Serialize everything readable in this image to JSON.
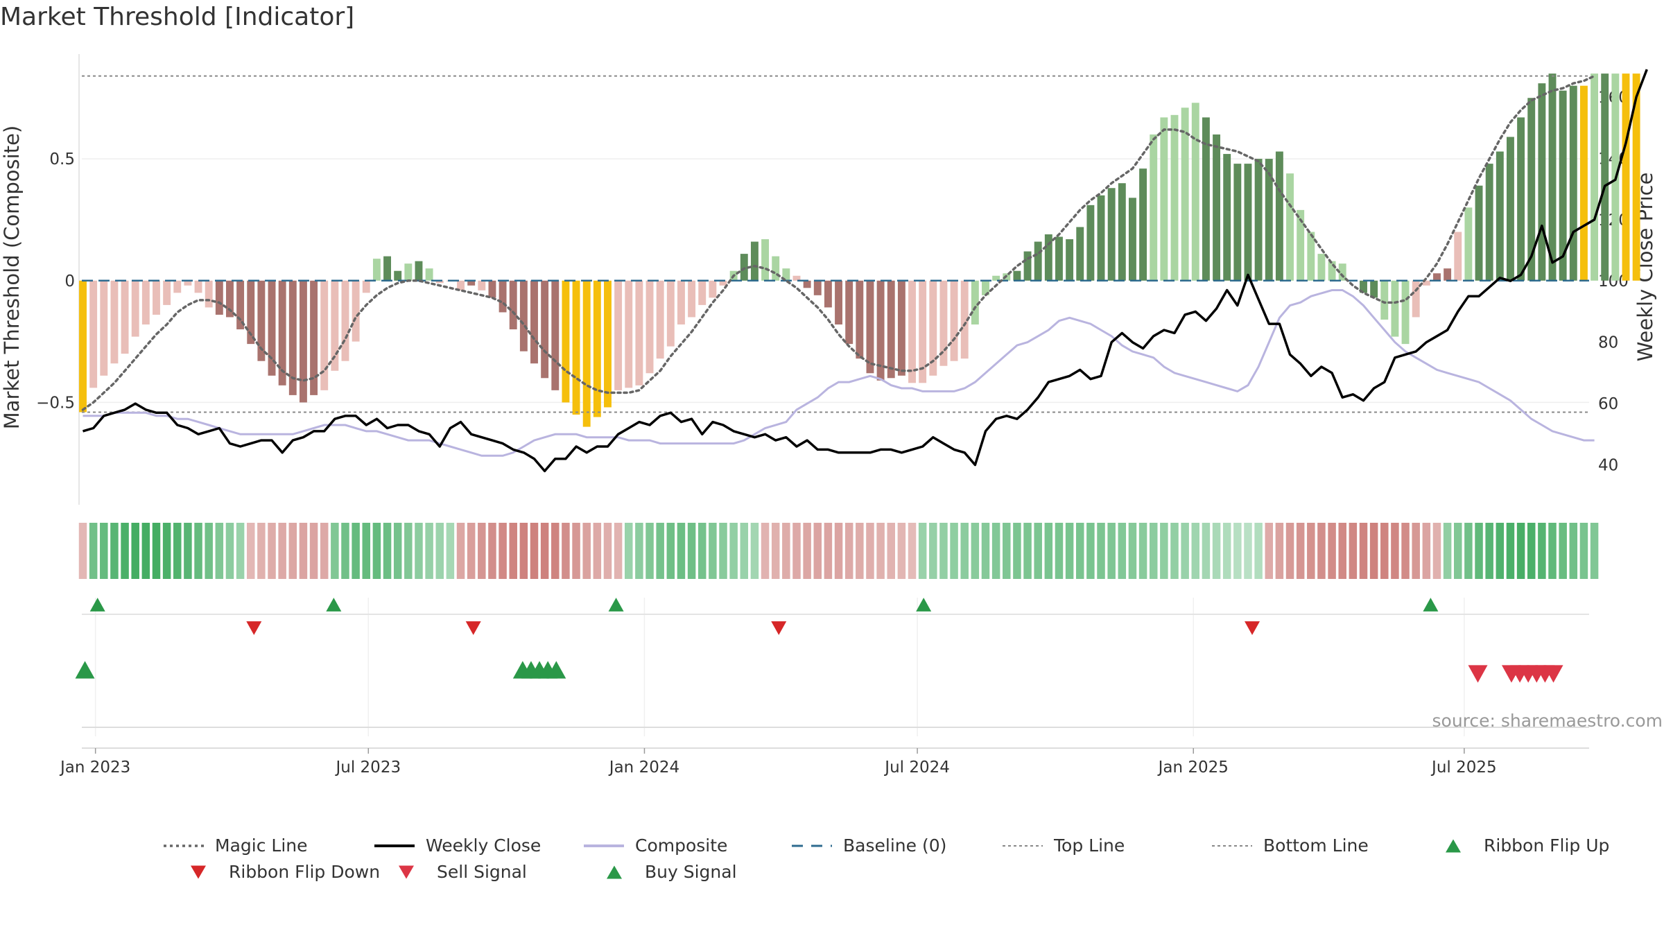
{
  "title": "Market Threshold [Indicator]",
  "source": "source: sharemaestro.com",
  "colors": {
    "yellow": "#f5bf0c",
    "dark_green": "#5e8c5a",
    "light_green": "#aad5a2",
    "dark_red": "#a9736e",
    "light_red": "#e9beb8",
    "magic_line": "#666666",
    "weekly_close": "#000000",
    "composite": "#b9b4df",
    "baseline": "#2e6b8f",
    "grid": "#efefef",
    "buy": "#2a9848",
    "sell": "#dc3545",
    "flip_down": "#d62728"
  },
  "chart_data": {
    "type": "bar",
    "title": "Market Threshold [Indicator]",
    "ylabel": "Market Threshold (Composite)",
    "y2label": "Weekly Close Price",
    "ylim": [
      -0.92,
      0.93
    ],
    "y2lim": [
      27,
      174
    ],
    "yticks": [
      {
        "v": 0.5,
        "label": "0.5"
      },
      {
        "v": 0,
        "label": "0"
      },
      {
        "v": -0.5,
        "label": "−0.5"
      }
    ],
    "y2ticks": [
      40,
      60,
      80,
      100,
      120,
      140,
      160
    ],
    "x_range": [
      -1.3,
      142.3
    ],
    "x_ticks": [
      {
        "label": "Jan 2023",
        "x": 0
      },
      {
        "label": "Jul 2023",
        "x": 26
      },
      {
        "label": "Jan 2024",
        "x": 52.3
      },
      {
        "label": "Jul 2024",
        "x": 78.3
      },
      {
        "label": "Jan 2025",
        "x": 104.6
      },
      {
        "label": "Jul 2025",
        "x": 130.4
      }
    ],
    "top_line": 0.84,
    "bottom_line": -0.54,
    "start_x": -1.2,
    "composite_bars": [
      -0.54,
      -0.44,
      -0.39,
      -0.34,
      -0.3,
      -0.23,
      -0.18,
      -0.14,
      -0.1,
      -0.05,
      -0.02,
      -0.05,
      -0.11,
      -0.14,
      -0.15,
      -0.2,
      -0.26,
      -0.33,
      -0.39,
      -0.43,
      -0.47,
      -0.5,
      -0.47,
      -0.45,
      -0.37,
      -0.33,
      -0.25,
      -0.05,
      0.09,
      0.1,
      0.04,
      0.07,
      0.08,
      0.05,
      -0.01,
      0.0,
      -0.04,
      -0.02,
      -0.04,
      -0.07,
      -0.13,
      -0.2,
      -0.29,
      -0.34,
      -0.4,
      -0.45,
      -0.5,
      -0.55,
      -0.6,
      -0.56,
      -0.52,
      -0.45,
      -0.44,
      -0.43,
      -0.38,
      -0.32,
      -0.27,
      -0.18,
      -0.15,
      -0.1,
      -0.07,
      -0.02,
      0.04,
      0.11,
      0.16,
      0.17,
      0.1,
      0.05,
      0.02,
      -0.03,
      -0.06,
      -0.11,
      -0.18,
      -0.26,
      -0.32,
      -0.38,
      -0.41,
      -0.4,
      -0.39,
      -0.42,
      -0.42,
      -0.39,
      -0.35,
      -0.33,
      -0.32,
      -0.18,
      -0.06,
      0.02,
      0.03,
      0.04,
      0.12,
      0.16,
      0.19,
      0.18,
      0.17,
      0.22,
      0.31,
      0.35,
      0.38,
      0.4,
      0.34,
      0.46,
      0.6,
      0.67,
      0.68,
      0.71,
      0.73,
      0.67,
      0.6,
      0.52,
      0.48,
      0.48,
      0.5,
      0.5,
      0.53,
      0.44,
      0.29,
      0.2,
      0.11,
      0.08,
      0.07,
      0.0,
      -0.05,
      -0.07,
      -0.16,
      -0.23,
      -0.26,
      -0.15,
      -0.02,
      0.03,
      0.05,
      0.2,
      0.3,
      0.39,
      0.48,
      0.53,
      0.59,
      0.67,
      0.75,
      0.81,
      0.85,
      0.78,
      0.8,
      0.8,
      0.85,
      0.85,
      0.85,
      0.85,
      0.85
    ],
    "bar_classes": "YrrrrrrrrrrrrRRRRRRRRRRrrrrrgGGgGgrrrRrRRRRRRRYYYYYrrrrrrrrrrrgGGgggrRRRRRRRRRRrrrrrrggggGGGGGGGGGGGGGgggggGGGGGGGGgggggggGGgggrrRRrgGGGGGGGGGGYgGgYYYYY",
    "magic_line": [
      -0.53,
      -0.5,
      -0.46,
      -0.42,
      -0.37,
      -0.32,
      -0.27,
      -0.22,
      -0.18,
      -0.13,
      -0.1,
      -0.08,
      -0.08,
      -0.09,
      -0.12,
      -0.16,
      -0.22,
      -0.28,
      -0.32,
      -0.37,
      -0.4,
      -0.41,
      -0.4,
      -0.37,
      -0.31,
      -0.24,
      -0.15,
      -0.1,
      -0.06,
      -0.03,
      -0.01,
      0.0,
      0.0,
      -0.01,
      -0.02,
      -0.03,
      -0.04,
      -0.05,
      -0.06,
      -0.07,
      -0.09,
      -0.13,
      -0.18,
      -0.24,
      -0.29,
      -0.33,
      -0.37,
      -0.4,
      -0.43,
      -0.45,
      -0.46,
      -0.46,
      -0.46,
      -0.45,
      -0.41,
      -0.37,
      -0.31,
      -0.26,
      -0.21,
      -0.15,
      -0.09,
      -0.04,
      0.02,
      0.05,
      0.06,
      0.05,
      0.03,
      0.0,
      -0.03,
      -0.07,
      -0.11,
      -0.16,
      -0.22,
      -0.27,
      -0.31,
      -0.34,
      -0.35,
      -0.36,
      -0.37,
      -0.37,
      -0.36,
      -0.33,
      -0.29,
      -0.24,
      -0.18,
      -0.11,
      -0.06,
      -0.02,
      0.02,
      0.06,
      0.09,
      0.11,
      0.15,
      0.19,
      0.24,
      0.29,
      0.33,
      0.36,
      0.4,
      0.43,
      0.46,
      0.52,
      0.58,
      0.62,
      0.62,
      0.61,
      0.58,
      0.56,
      0.55,
      0.54,
      0.53,
      0.51,
      0.49,
      0.44,
      0.37,
      0.31,
      0.25,
      0.19,
      0.13,
      0.07,
      0.02,
      -0.02,
      -0.05,
      -0.07,
      -0.09,
      -0.09,
      -0.08,
      -0.04,
      0.01,
      0.07,
      0.15,
      0.24,
      0.33,
      0.42,
      0.5,
      0.58,
      0.65,
      0.7,
      0.74,
      0.76,
      0.78,
      0.79,
      0.81,
      0.82,
      0.84
    ],
    "weekly_close": [
      51,
      52,
      56,
      57,
      58,
      60,
      58,
      57,
      57,
      53,
      52,
      50,
      51,
      52,
      47,
      46,
      47,
      48,
      48,
      44,
      48,
      49,
      51,
      51,
      55,
      56,
      56,
      53,
      55,
      52,
      53,
      53,
      51,
      50,
      46,
      52,
      54,
      50,
      49,
      48,
      47,
      45,
      44,
      42,
      38,
      42,
      42,
      46,
      44,
      46,
      46,
      50,
      52,
      54,
      53,
      56,
      57,
      54,
      55,
      50,
      54,
      53,
      51,
      50,
      49,
      50,
      48,
      49,
      46,
      48,
      45,
      45,
      44,
      44,
      44,
      44,
      45,
      45,
      44,
      45,
      46,
      49,
      47,
      45,
      44,
      40,
      51,
      55,
      56,
      55,
      58,
      62,
      67,
      68,
      69,
      71,
      68,
      69,
      80,
      83,
      80,
      78,
      82,
      84,
      83,
      89,
      90,
      87,
      91,
      97,
      92,
      102,
      94,
      86,
      86,
      76,
      73,
      69,
      72,
      70,
      62,
      63,
      61,
      65,
      67,
      75,
      76,
      77,
      80,
      82,
      84,
      90,
      95,
      95,
      98,
      101,
      100,
      102,
      108,
      118,
      106,
      108,
      116,
      118,
      120,
      131,
      133,
      145,
      160,
      169
    ],
    "composite_line": [
      56,
      56,
      56,
      57,
      57,
      57,
      57,
      56,
      56,
      55,
      55,
      54,
      53,
      52,
      51,
      50,
      50,
      50,
      50,
      50,
      50,
      51,
      52,
      53,
      53,
      53,
      52,
      51,
      51,
      50,
      49,
      48,
      48,
      48,
      47,
      46,
      45,
      44,
      43,
      43,
      43,
      44,
      46,
      48,
      49,
      50,
      50,
      50,
      49,
      49,
      49,
      49,
      48,
      48,
      48,
      47,
      47,
      47,
      47,
      47,
      47,
      47,
      47,
      48,
      50,
      52,
      53,
      54,
      58,
      60,
      62,
      65,
      67,
      67,
      68,
      69,
      68,
      66,
      65,
      65,
      64,
      64,
      64,
      64,
      65,
      67,
      70,
      73,
      76,
      79,
      80,
      82,
      84,
      87,
      88,
      87,
      86,
      84,
      82,
      79,
      77,
      76,
      75,
      72,
      70,
      69,
      68,
      67,
      66,
      65,
      64,
      66,
      72,
      80,
      88,
      92,
      93,
      95,
      96,
      97,
      97,
      95,
      92,
      88,
      84,
      80,
      77,
      75,
      73,
      71,
      70,
      69,
      68,
      67,
      65,
      63,
      61,
      58,
      55,
      53,
      51,
      50,
      49,
      48,
      48
    ],
    "ribbon": [
      -0.25,
      0.55,
      0.62,
      0.7,
      0.78,
      0.82,
      0.82,
      0.82,
      0.78,
      0.74,
      0.7,
      0.62,
      0.55,
      0.45,
      0.38,
      0.3,
      -0.25,
      -0.3,
      -0.34,
      -0.36,
      -0.38,
      -0.4,
      -0.4,
      -0.36,
      0.45,
      0.55,
      0.62,
      0.62,
      0.62,
      0.58,
      0.52,
      0.45,
      0.38,
      0.32,
      0.28,
      0.22,
      -0.38,
      -0.45,
      -0.52,
      -0.58,
      -0.62,
      -0.66,
      -0.68,
      -0.68,
      -0.68,
      -0.66,
      -0.58,
      -0.5,
      -0.42,
      -0.36,
      -0.32,
      -0.28,
      0.3,
      0.38,
      0.45,
      0.52,
      0.56,
      0.58,
      0.56,
      0.52,
      0.45,
      0.4,
      0.34,
      0.3,
      0.24,
      -0.28,
      -0.3,
      -0.34,
      -0.36,
      -0.38,
      -0.4,
      -0.4,
      -0.4,
      -0.36,
      -0.34,
      -0.32,
      -0.3,
      -0.28,
      -0.26,
      -0.22,
      0.3,
      0.32,
      0.34,
      0.36,
      0.38,
      0.4,
      0.42,
      0.44,
      0.46,
      0.48,
      0.48,
      0.48,
      0.5,
      0.5,
      0.5,
      0.5,
      0.5,
      0.48,
      0.46,
      0.44,
      0.42,
      0.4,
      0.38,
      0.36,
      0.34,
      0.3,
      0.26,
      0.24,
      0.2,
      0.16,
      0.12,
      0.1,
      0.15,
      -0.35,
      -0.42,
      -0.48,
      -0.52,
      -0.55,
      -0.58,
      -0.6,
      -0.62,
      -0.64,
      -0.66,
      -0.68,
      -0.66,
      -0.64,
      -0.6,
      -0.5,
      -0.4,
      -0.3,
      0.35,
      0.45,
      0.55,
      0.65,
      0.7,
      0.75,
      0.78,
      0.8,
      0.78,
      0.72,
      0.65,
      0.6,
      0.55,
      0.5,
      0.45
    ],
    "ribbon_flip_up": [
      0.2,
      22.7,
      49.6,
      78.9,
      127.2
    ],
    "ribbon_flip_down": [
      15.1,
      36.0,
      65.1,
      110.2
    ],
    "buy_signal": [
      -1.0,
      40.7,
      41.5,
      42.3,
      43.1,
      43.9
    ],
    "sell_signal": [
      131.7,
      134.9,
      135.7,
      136.5,
      137.3,
      138.1,
      138.9
    ],
    "legend": [
      {
        "label": "Magic Line",
        "kind": "dotted",
        "color": "#666666"
      },
      {
        "label": "Weekly Close",
        "kind": "solid",
        "color": "#000000"
      },
      {
        "label": "Composite",
        "kind": "solid",
        "color": "#b9b4df"
      },
      {
        "label": "Baseline (0)",
        "kind": "dashed",
        "color": "#2e6b8f"
      },
      {
        "label": "Top Line",
        "kind": "dotted-thin",
        "color": "#888888"
      },
      {
        "label": "Bottom Line",
        "kind": "dotted-thin",
        "color": "#888888"
      },
      {
        "label": "Ribbon Flip Up",
        "kind": "tri-up",
        "color": "#2a9848"
      },
      {
        "label": "Ribbon Flip Down",
        "kind": "tri-down",
        "color": "#d62728"
      },
      {
        "label": "Sell Signal",
        "kind": "tri-down",
        "color": "#dc3545"
      },
      {
        "label": "Buy Signal",
        "kind": "tri-up",
        "color": "#2a9848"
      }
    ]
  }
}
